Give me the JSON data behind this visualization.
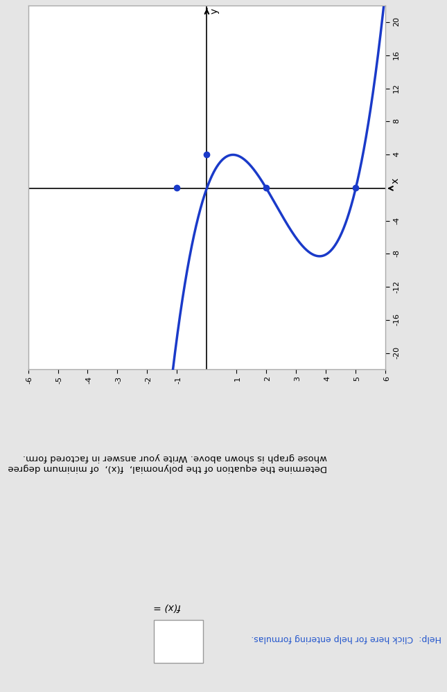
{
  "title_text": "Determine the equation of the polynomial,  f(x),  of minimum degree whose graph is shown above. Write your answer in factored form.",
  "fx_label": "f(x) =",
  "help_text": "Help: Click here for help entering formulas.",
  "curve_color": "#1a3ac9",
  "dot_color": "#1a3ac9",
  "bg_color": "#e5e5e5",
  "plot_bg": "#ffffff",
  "plot_border": "#aaaaaa",
  "x_range": [
    -6,
    6
  ],
  "y_range": [
    -22,
    22
  ],
  "x_ticks": [
    -6,
    -5,
    -4,
    -3,
    -2,
    -1,
    1,
    2,
    3,
    4,
    5,
    6
  ],
  "y_ticks": [
    -20,
    -16,
    -12,
    -8,
    -4,
    4,
    8,
    12,
    16,
    20
  ],
  "dots_xy": [
    [
      0,
      -1
    ],
    [
      4,
      0
    ],
    [
      0,
      2
    ],
    [
      0,
      5
    ]
  ],
  "line_width": 2.5,
  "dot_size": 6
}
